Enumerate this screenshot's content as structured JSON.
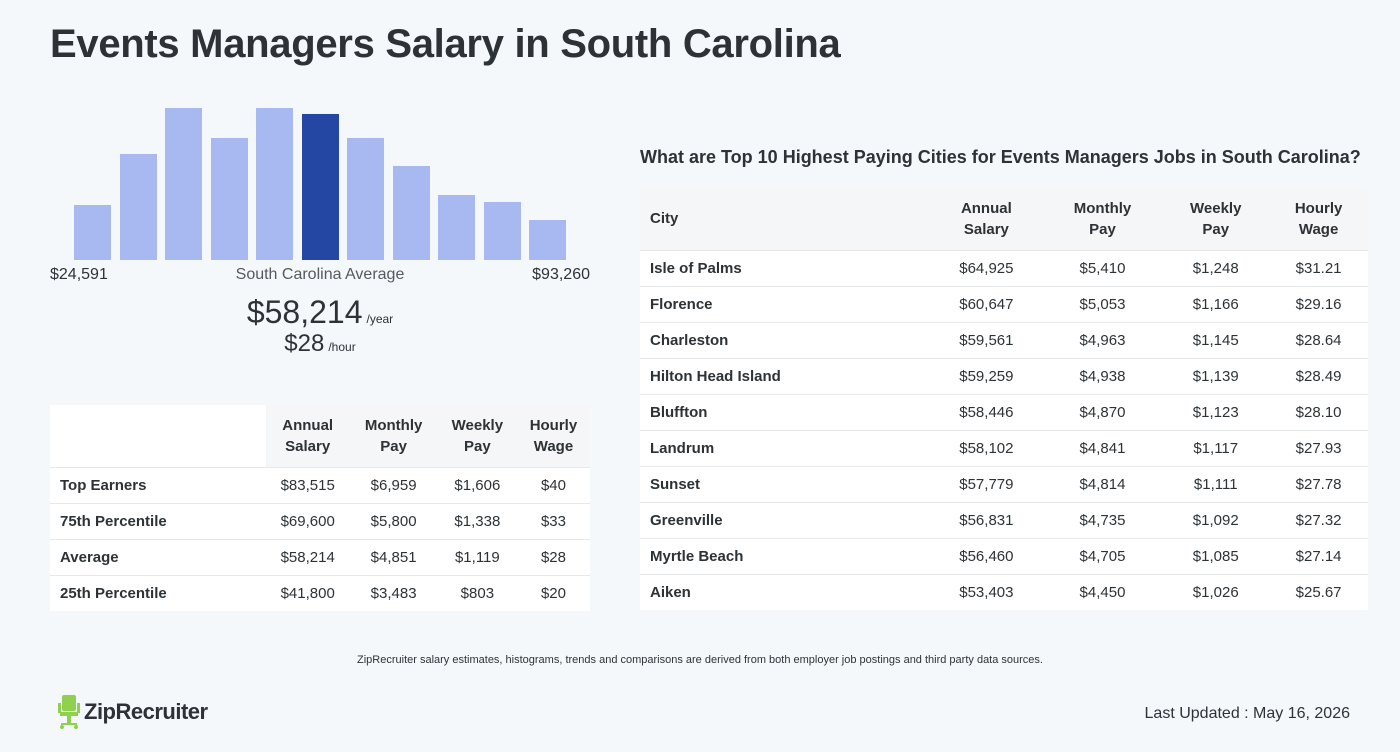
{
  "page": {
    "title": "Events Managers Salary in South Carolina"
  },
  "histogram": {
    "min_label": "$24,591",
    "max_label": "$93,260",
    "avg_label": "South Carolina Average",
    "avg_annual": "$58,214",
    "annual_unit": "/year",
    "avg_hourly": "$28",
    "hourly_unit": "/hour",
    "bar_levels": [
      0.36,
      0.7,
      1.0,
      0.8,
      1.0,
      0.96,
      0.8,
      0.62,
      0.43,
      0.38,
      0.26
    ],
    "highlight_index": 5,
    "bar_color": "#a8b9f1",
    "highlight_color": "#2547a4"
  },
  "percentile_table": {
    "headers": [
      [
        "Annual",
        "Salary"
      ],
      [
        "Monthly",
        "Pay"
      ],
      [
        "Weekly",
        "Pay"
      ],
      [
        "Hourly",
        "Wage"
      ]
    ],
    "rows": [
      {
        "label": "Top Earners",
        "annual": "$83,515",
        "monthly": "$6,959",
        "weekly": "$1,606",
        "hourly": "$40"
      },
      {
        "label": "75th Percentile",
        "annual": "$69,600",
        "monthly": "$5,800",
        "weekly": "$1,338",
        "hourly": "$33"
      },
      {
        "label": "Average",
        "annual": "$58,214",
        "monthly": "$4,851",
        "weekly": "$1,119",
        "hourly": "$28"
      },
      {
        "label": "25th Percentile",
        "annual": "$41,800",
        "monthly": "$3,483",
        "weekly": "$803",
        "hourly": "$20"
      }
    ]
  },
  "cities": {
    "title": "What are Top 10 Highest Paying Cities for Events Managers Jobs in South Carolina?",
    "city_header": "City",
    "headers": [
      [
        "Annual",
        "Salary"
      ],
      [
        "Monthly",
        "Pay"
      ],
      [
        "Weekly",
        "Pay"
      ],
      [
        "Hourly",
        "Wage"
      ]
    ],
    "rows": [
      {
        "city": "Isle of Palms",
        "annual": "$64,925",
        "monthly": "$5,410",
        "weekly": "$1,248",
        "hourly": "$31.21"
      },
      {
        "city": "Florence",
        "annual": "$60,647",
        "monthly": "$5,053",
        "weekly": "$1,166",
        "hourly": "$29.16"
      },
      {
        "city": "Charleston",
        "annual": "$59,561",
        "monthly": "$4,963",
        "weekly": "$1,145",
        "hourly": "$28.64"
      },
      {
        "city": "Hilton Head Island",
        "annual": "$59,259",
        "monthly": "$4,938",
        "weekly": "$1,139",
        "hourly": "$28.49"
      },
      {
        "city": "Bluffton",
        "annual": "$58,446",
        "monthly": "$4,870",
        "weekly": "$1,123",
        "hourly": "$28.10"
      },
      {
        "city": "Landrum",
        "annual": "$58,102",
        "monthly": "$4,841",
        "weekly": "$1,117",
        "hourly": "$27.93"
      },
      {
        "city": "Sunset",
        "annual": "$57,779",
        "monthly": "$4,814",
        "weekly": "$1,111",
        "hourly": "$27.78"
      },
      {
        "city": "Greenville",
        "annual": "$56,831",
        "monthly": "$4,735",
        "weekly": "$1,092",
        "hourly": "$27.32"
      },
      {
        "city": "Myrtle Beach",
        "annual": "$56,460",
        "monthly": "$4,705",
        "weekly": "$1,085",
        "hourly": "$27.14"
      },
      {
        "city": "Aiken",
        "annual": "$53,403",
        "monthly": "$4,450",
        "weekly": "$1,026",
        "hourly": "$25.67"
      }
    ]
  },
  "footer": {
    "disclaimer": "ZipRecruiter salary estimates, histograms, trends and comparisons are derived from both employer job postings and third party data sources.",
    "logo_text": "ZipRecruiter",
    "logo_icon": "ziprecruiter-chair-icon",
    "logo_color": "#8fd14f",
    "last_updated": "Last Updated : May 16, 2026"
  }
}
